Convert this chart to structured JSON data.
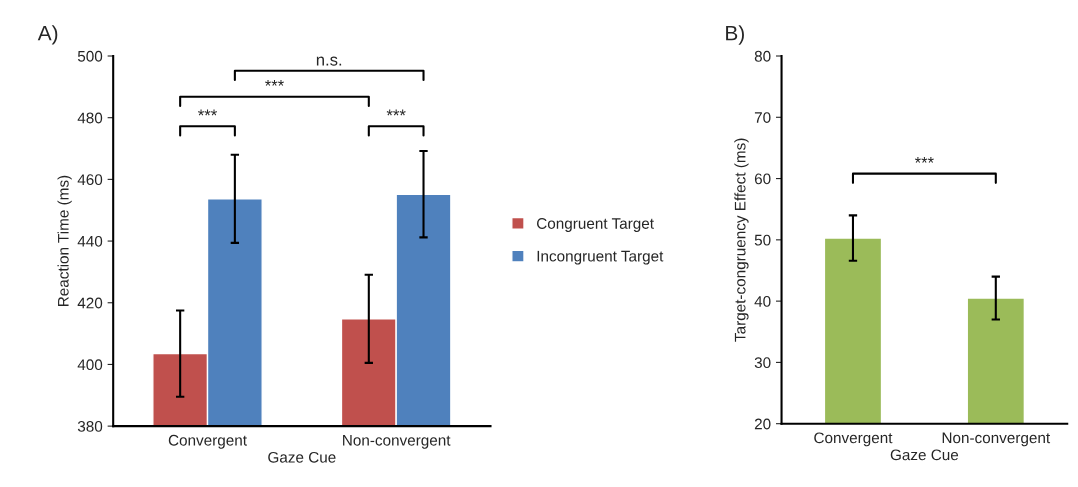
{
  "chart_data": [
    {
      "type": "bar",
      "title": "A)",
      "xlabel": "Gaze Cue",
      "ylabel": "Reaction Time (ms)",
      "categories": [
        "Convergent",
        "Non-convergent"
      ],
      "series": [
        {
          "name": "Congruent Target",
          "color": "#c0504d",
          "values": [
            403.5,
            414.8
          ],
          "errors": [
            14,
            14.3
          ]
        },
        {
          "name": "Incongruent Target",
          "color": "#4f81bd",
          "values": [
            453.7,
            455.2
          ],
          "errors": [
            14.3,
            14
          ]
        }
      ],
      "ylim": [
        380,
        500
      ],
      "yticks": [
        380,
        400,
        420,
        440,
        460,
        480,
        500
      ],
      "grid": false,
      "legend": "right",
      "annotations": [
        "n.s.",
        "***",
        "***",
        "***"
      ]
    },
    {
      "type": "bar",
      "title": "B)",
      "xlabel": "Gaze Cue",
      "ylabel": "Target-congruency Effect (ms)",
      "categories": [
        "Convergent",
        "Non-convergent"
      ],
      "series": [
        {
          "color": "#9bbb59",
          "values": [
            50.3,
            40.5
          ],
          "errors": [
            3.7,
            3.5
          ]
        }
      ],
      "ylim": [
        20,
        80
      ],
      "yticks": [
        20,
        30,
        40,
        50,
        60,
        70,
        80
      ],
      "grid": false,
      "annotations": [
        "***"
      ]
    }
  ]
}
